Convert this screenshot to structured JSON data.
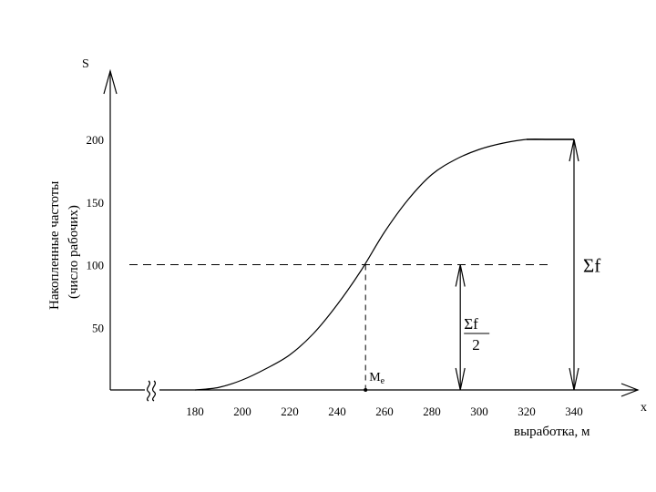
{
  "chart_data": {
    "type": "line",
    "title": "",
    "y_axis_symbol": "S",
    "x_axis_symbol": "x",
    "xlabel": "выработка, м",
    "ylabel_line1": "Накопленные частоты",
    "ylabel_line2": "(число рабочих)",
    "x_ticks": [
      180,
      200,
      220,
      240,
      260,
      280,
      300,
      320,
      340
    ],
    "y_ticks": [
      50,
      100,
      150,
      200
    ],
    "xlim": [
      140,
      370
    ],
    "ylim": [
      0,
      255
    ],
    "axis_break": true,
    "grid": false,
    "legend": "none",
    "series": [
      {
        "x": [
          180,
          190,
          200,
          210,
          220,
          230,
          240,
          250,
          260,
          270,
          280,
          290,
          300,
          310,
          320,
          330,
          340
        ],
        "values": [
          0,
          2,
          8,
          17,
          28,
          45,
          68,
          95,
          126,
          152,
          172,
          184,
          192,
          197,
          200,
          200,
          200
        ]
      }
    ],
    "annotations": {
      "median_label": "M",
      "median_subscript": "e",
      "median_x": 252,
      "half_level": 100,
      "half_arrow_x": 292,
      "total_arrow_x": 340,
      "total_label": "Σf",
      "half_numerator": "Σf",
      "half_denominator": "2"
    }
  }
}
